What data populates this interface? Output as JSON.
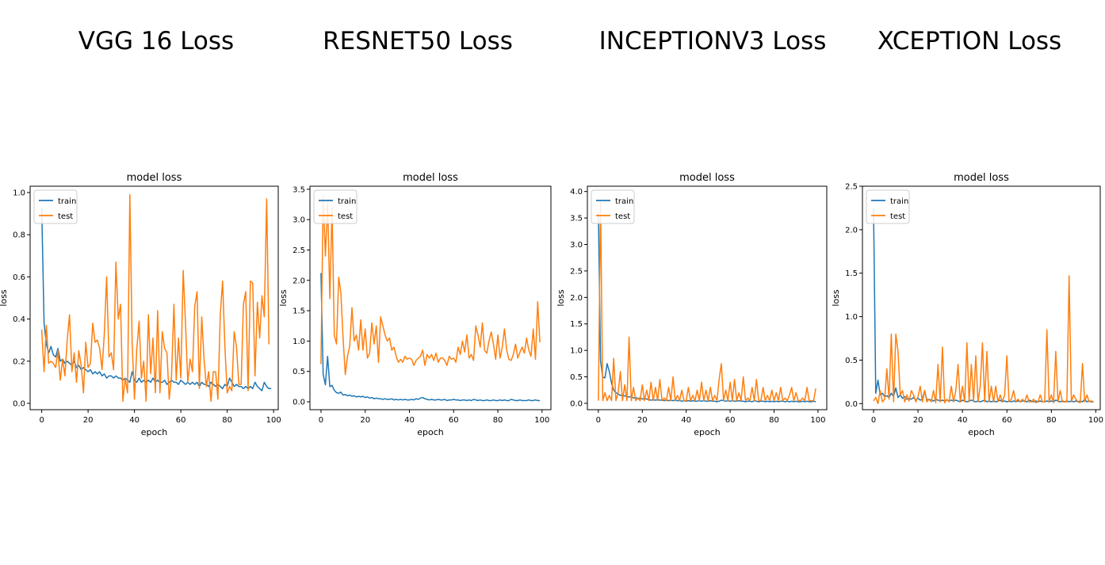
{
  "headings": [
    "VGG 16 Loss",
    "RESNET50 Loss",
    "INCEPTIONV3 Loss",
    "XCEPTION Loss"
  ],
  "colors": {
    "train": "#1f77b4",
    "test": "#ff7f0e"
  },
  "chart_data": [
    {
      "type": "line",
      "title": "model loss",
      "xlabel": "epoch",
      "ylabel": "loss",
      "xlim": [
        -5,
        102
      ],
      "ylim": [
        -0.03,
        1.03
      ],
      "xticks": [
        0,
        20,
        40,
        60,
        80,
        100
      ],
      "yticks": [
        0.0,
        0.2,
        0.4,
        0.6,
        0.8,
        1.0
      ],
      "ytick_labels": [
        "0.0",
        "0.2",
        "0.4",
        "0.6",
        "0.8",
        "1.0"
      ],
      "legend": "upper left",
      "series": [
        {
          "name": "train",
          "values": [
            0.93,
            0.38,
            0.28,
            0.24,
            0.27,
            0.23,
            0.22,
            0.26,
            0.2,
            0.21,
            0.19,
            0.2,
            0.19,
            0.18,
            0.2,
            0.17,
            0.18,
            0.16,
            0.17,
            0.16,
            0.15,
            0.16,
            0.14,
            0.15,
            0.14,
            0.15,
            0.13,
            0.14,
            0.12,
            0.13,
            0.13,
            0.12,
            0.13,
            0.12,
            0.12,
            0.11,
            0.12,
            0.11,
            0.1,
            0.15,
            0.11,
            0.1,
            0.12,
            0.1,
            0.11,
            0.1,
            0.11,
            0.1,
            0.12,
            0.1,
            0.11,
            0.1,
            0.1,
            0.11,
            0.09,
            0.1,
            0.11,
            0.1,
            0.1,
            0.09,
            0.11,
            0.1,
            0.09,
            0.1,
            0.09,
            0.1,
            0.09,
            0.1,
            0.08,
            0.1,
            0.09,
            0.09,
            0.08,
            0.1,
            0.09,
            0.08,
            0.09,
            0.08,
            0.07,
            0.09,
            0.08,
            0.12,
            0.1,
            0.08,
            0.09,
            0.08,
            0.08,
            0.07,
            0.08,
            0.07,
            0.08,
            0.07,
            0.1,
            0.08,
            0.07,
            0.06,
            0.1,
            0.08,
            0.07,
            0.07
          ]
        },
        {
          "name": "test",
          "values": [
            0.35,
            0.15,
            0.37,
            0.19,
            0.2,
            0.19,
            0.17,
            0.25,
            0.11,
            0.21,
            0.13,
            0.3,
            0.42,
            0.15,
            0.24,
            0.1,
            0.25,
            0.18,
            0.05,
            0.29,
            0.17,
            0.19,
            0.38,
            0.29,
            0.3,
            0.26,
            0.16,
            0.33,
            0.6,
            0.22,
            0.24,
            0.16,
            0.67,
            0.4,
            0.47,
            0.01,
            0.12,
            0.05,
            0.99,
            0.29,
            0.02,
            0.26,
            0.39,
            0.12,
            0.2,
            0.01,
            0.42,
            0.14,
            0.31,
            0.05,
            0.44,
            0.05,
            0.34,
            0.26,
            0.24,
            0.02,
            0.13,
            0.47,
            0.11,
            0.31,
            0.12,
            0.63,
            0.38,
            0.1,
            0.21,
            0.15,
            0.46,
            0.53,
            0.07,
            0.41,
            0.21,
            0.08,
            0.15,
            0.01,
            0.15,
            0.15,
            0.02,
            0.42,
            0.58,
            0.27,
            0.05,
            0.08,
            0.06,
            0.34,
            0.27,
            0.09,
            0.09,
            0.47,
            0.53,
            0.06,
            0.58,
            0.57,
            0.13,
            0.48,
            0.31,
            0.51,
            0.41,
            0.97,
            0.28
          ]
        }
      ]
    },
    {
      "type": "line",
      "title": "model loss",
      "xlabel": "epoch",
      "ylabel": "loss",
      "xlim": [
        -5,
        104
      ],
      "ylim": [
        -0.13,
        3.55
      ],
      "xticks": [
        0,
        20,
        40,
        60,
        80,
        100
      ],
      "yticks": [
        0.0,
        0.5,
        1.0,
        1.5,
        2.0,
        2.5,
        3.0,
        3.5
      ],
      "ytick_labels": [
        "0.0",
        "0.5",
        "1.0",
        "1.5",
        "2.0",
        "2.5",
        "3.0",
        "3.5"
      ],
      "legend": "upper left",
      "series": [
        {
          "name": "train",
          "values": [
            2.12,
            0.45,
            0.28,
            0.75,
            0.25,
            0.27,
            0.19,
            0.15,
            0.14,
            0.16,
            0.11,
            0.12,
            0.1,
            0.11,
            0.09,
            0.1,
            0.08,
            0.09,
            0.08,
            0.09,
            0.07,
            0.08,
            0.06,
            0.07,
            0.05,
            0.06,
            0.05,
            0.05,
            0.04,
            0.05,
            0.04,
            0.04,
            0.05,
            0.03,
            0.04,
            0.03,
            0.04,
            0.03,
            0.04,
            0.03,
            0.03,
            0.04,
            0.03,
            0.05,
            0.04,
            0.06,
            0.07,
            0.05,
            0.04,
            0.03,
            0.04,
            0.03,
            0.03,
            0.04,
            0.03,
            0.03,
            0.04,
            0.02,
            0.03,
            0.03,
            0.04,
            0.03,
            0.03,
            0.02,
            0.03,
            0.03,
            0.02,
            0.03,
            0.02,
            0.04,
            0.03,
            0.02,
            0.03,
            0.02,
            0.02,
            0.03,
            0.02,
            0.02,
            0.03,
            0.02,
            0.02,
            0.03,
            0.02,
            0.03,
            0.02,
            0.02,
            0.04,
            0.03,
            0.02,
            0.02,
            0.03,
            0.02,
            0.02,
            0.02,
            0.03,
            0.02,
            0.02,
            0.03,
            0.02,
            0.02
          ]
        },
        {
          "name": "test",
          "values": [
            0.62,
            3.4,
            2.4,
            3.3,
            1.7,
            3.2,
            1.1,
            0.95,
            2.05,
            1.8,
            1.05,
            0.45,
            0.75,
            0.92,
            1.55,
            1.0,
            1.1,
            0.85,
            1.35,
            0.85,
            1.2,
            0.72,
            0.8,
            1.3,
            0.95,
            1.25,
            0.65,
            1.4,
            1.25,
            1.1,
            1.0,
            1.05,
            0.85,
            0.9,
            0.75,
            0.65,
            0.7,
            0.65,
            0.75,
            0.7,
            0.72,
            0.7,
            0.6,
            0.68,
            0.72,
            0.75,
            0.85,
            0.6,
            0.78,
            0.72,
            0.78,
            0.68,
            0.8,
            0.65,
            0.72,
            0.72,
            0.68,
            0.6,
            0.75,
            0.7,
            0.72,
            0.65,
            0.9,
            0.78,
            1.0,
            0.82,
            1.1,
            0.72,
            0.78,
            0.68,
            1.25,
            1.1,
            0.9,
            1.3,
            0.85,
            0.8,
            1.0,
            1.15,
            0.95,
            0.7,
            1.1,
            0.72,
            0.9,
            1.2,
            0.85,
            0.7,
            0.68,
            0.78,
            0.95,
            0.72,
            0.82,
            0.9,
            0.8,
            1.05,
            0.85,
            0.75,
            1.2,
            0.7,
            1.65,
            0.98
          ]
        }
      ]
    },
    {
      "type": "line",
      "title": "model loss",
      "xlabel": "epoch",
      "ylabel": "loss",
      "xlim": [
        -5,
        104
      ],
      "ylim": [
        -0.12,
        4.1
      ],
      "xticks": [
        0,
        20,
        40,
        60,
        80,
        100
      ],
      "yticks": [
        0.0,
        0.5,
        1.0,
        1.5,
        2.0,
        2.5,
        3.0,
        3.5,
        4.0
      ],
      "ytick_labels": [
        "0.0",
        "0.5",
        "1.0",
        "1.5",
        "2.0",
        "2.5",
        "3.0",
        "3.5",
        "4.0"
      ],
      "legend": "upper left",
      "series": [
        {
          "name": "train",
          "values": [
            3.6,
            0.8,
            0.5,
            0.48,
            0.75,
            0.6,
            0.38,
            0.25,
            0.2,
            0.18,
            0.15,
            0.16,
            0.14,
            0.13,
            0.12,
            0.13,
            0.1,
            0.11,
            0.09,
            0.1,
            0.08,
            0.09,
            0.08,
            0.07,
            0.06,
            0.07,
            0.06,
            0.07,
            0.06,
            0.06,
            0.05,
            0.06,
            0.05,
            0.06,
            0.05,
            0.06,
            0.05,
            0.05,
            0.04,
            0.05,
            0.04,
            0.05,
            0.04,
            0.05,
            0.04,
            0.04,
            0.05,
            0.04,
            0.05,
            0.04,
            0.04,
            0.05,
            0.04,
            0.04,
            0.03,
            0.04,
            0.06,
            0.05,
            0.04,
            0.05,
            0.04,
            0.05,
            0.04,
            0.04,
            0.05,
            0.04,
            0.04,
            0.03,
            0.04,
            0.04,
            0.03,
            0.05,
            0.04,
            0.03,
            0.04,
            0.04,
            0.03,
            0.04,
            0.03,
            0.04,
            0.03,
            0.04,
            0.03,
            0.04,
            0.04,
            0.03,
            0.04,
            0.03,
            0.04,
            0.03,
            0.04,
            0.03,
            0.03,
            0.04,
            0.03,
            0.04,
            0.03,
            0.03,
            0.04,
            0.03
          ]
        },
        {
          "name": "test",
          "values": [
            0.05,
            3.8,
            0.05,
            0.2,
            0.05,
            0.15,
            0.05,
            0.85,
            0.05,
            0.2,
            0.6,
            0.05,
            0.35,
            0.05,
            1.25,
            0.05,
            0.3,
            0.05,
            0.1,
            0.05,
            0.35,
            0.05,
            0.25,
            0.05,
            0.4,
            0.05,
            0.3,
            0.05,
            0.45,
            0.05,
            0.1,
            0.05,
            0.3,
            0.05,
            0.5,
            0.05,
            0.15,
            0.05,
            0.25,
            0.05,
            0.05,
            0.3,
            0.05,
            0.15,
            0.05,
            0.25,
            0.05,
            0.4,
            0.05,
            0.25,
            0.05,
            0.3,
            0.05,
            0.15,
            0.05,
            0.45,
            0.75,
            0.05,
            0.25,
            0.05,
            0.4,
            0.05,
            0.45,
            0.05,
            0.2,
            0.05,
            0.5,
            0.05,
            0.1,
            0.05,
            0.3,
            0.05,
            0.45,
            0.05,
            0.05,
            0.3,
            0.05,
            0.15,
            0.05,
            0.25,
            0.05,
            0.2,
            0.05,
            0.3,
            0.05,
            0.1,
            0.05,
            0.15,
            0.3,
            0.05,
            0.2,
            0.05,
            0.05,
            0.1,
            0.05,
            0.3,
            0.05,
            0.05,
            0.05,
            0.28
          ]
        }
      ]
    },
    {
      "type": "line",
      "title": "model loss",
      "xlabel": "epoch",
      "ylabel": "loss",
      "xlim": [
        -5,
        102
      ],
      "ylim": [
        -0.07,
        2.5
      ],
      "xticks": [
        0,
        20,
        40,
        60,
        80,
        100
      ],
      "yticks": [
        0.0,
        0.5,
        1.0,
        1.5,
        2.0,
        2.5
      ],
      "ytick_labels": [
        "0.0",
        "0.5",
        "1.0",
        "1.5",
        "2.0",
        "2.5"
      ],
      "legend": "upper left",
      "series": [
        {
          "name": "train",
          "values": [
            2.25,
            0.12,
            0.27,
            0.1,
            0.12,
            0.08,
            0.09,
            0.07,
            0.12,
            0.08,
            0.18,
            0.07,
            0.1,
            0.06,
            0.08,
            0.05,
            0.06,
            0.05,
            0.07,
            0.04,
            0.06,
            0.04,
            0.05,
            0.15,
            0.04,
            0.05,
            0.04,
            0.03,
            0.05,
            0.04,
            0.03,
            0.04,
            0.03,
            0.04,
            0.03,
            0.04,
            0.03,
            0.04,
            0.03,
            0.02,
            0.04,
            0.03,
            0.02,
            0.03,
            0.04,
            0.03,
            0.02,
            0.03,
            0.02,
            0.03,
            0.04,
            0.02,
            0.03,
            0.02,
            0.03,
            0.02,
            0.03,
            0.04,
            0.02,
            0.03,
            0.02,
            0.03,
            0.02,
            0.03,
            0.02,
            0.03,
            0.02,
            0.03,
            0.03,
            0.02,
            0.04,
            0.03,
            0.02,
            0.03,
            0.02,
            0.03,
            0.02,
            0.02,
            0.03,
            0.02,
            0.03,
            0.02,
            0.04,
            0.03,
            0.02,
            0.03,
            0.02,
            0.03,
            0.02,
            0.03,
            0.02,
            0.03,
            0.02,
            0.03,
            0.02,
            0.05,
            0.02,
            0.03,
            0.02,
            0.02
          ]
        },
        {
          "name": "test",
          "values": [
            0.03,
            0.07,
            0.0,
            0.15,
            0.02,
            0.05,
            0.4,
            0.05,
            0.8,
            0.02,
            0.8,
            0.6,
            0.1,
            0.15,
            0.02,
            0.1,
            0.03,
            0.15,
            0.1,
            0.02,
            0.08,
            0.2,
            0.02,
            0.15,
            0.02,
            0.05,
            0.02,
            0.15,
            0.01,
            0.45,
            0.02,
            0.65,
            0.01,
            0.05,
            0.02,
            0.2,
            0.02,
            0.15,
            0.45,
            0.02,
            0.2,
            0.02,
            0.7,
            0.02,
            0.45,
            0.02,
            0.55,
            0.02,
            0.2,
            0.7,
            0.02,
            0.6,
            0.02,
            0.2,
            0.02,
            0.2,
            0.02,
            0.1,
            0.02,
            0.1,
            0.55,
            0.02,
            0.05,
            0.15,
            0.02,
            0.05,
            0.02,
            0.05,
            0.02,
            0.1,
            0.02,
            0.02,
            0.05,
            0.01,
            0.02,
            0.1,
            0.02,
            0.02,
            0.85,
            0.02,
            0.1,
            0.01,
            0.6,
            0.02,
            0.15,
            0.02,
            0.02,
            0.02,
            1.47,
            0.02,
            0.1,
            0.05,
            0.02,
            0.01,
            0.46,
            0.02,
            0.1,
            0.02,
            0.03,
            0.02
          ]
        }
      ]
    }
  ]
}
